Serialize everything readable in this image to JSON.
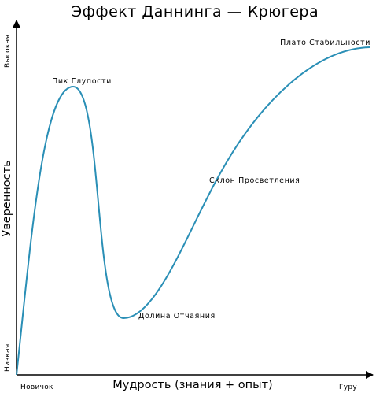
{
  "chart_data": {
    "type": "diagram",
    "title": "Эффект Даннинга — Крюгера",
    "xlabel": "Мудрость (знания + опыт)",
    "ylabel": "Уверенность",
    "x_ticks": {
      "start": "Новичок",
      "end": "Гуру"
    },
    "y_ticks": {
      "low": "Низкая",
      "high": "Высокая"
    },
    "annotations": {
      "peak": "Пик Глупости",
      "valley": "Долина Отчаяния",
      "slope": "Склон Просветления",
      "plateau": "Плато Стабильности"
    },
    "curve_color": "#2a8fb6",
    "axis_color": "#000000"
  }
}
